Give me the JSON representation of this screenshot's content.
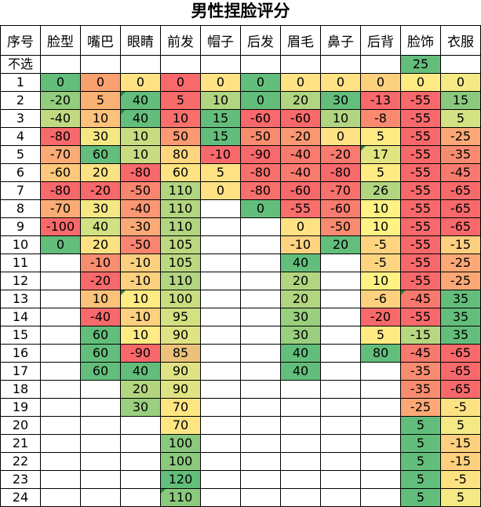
{
  "title": "男性捏脸评分",
  "headers": [
    "序号",
    "脸型",
    "嘴巴",
    "眼睛",
    "前发",
    "帽子",
    "后发",
    "眉毛",
    "鼻子",
    "后背",
    "脸饰",
    "衣服"
  ],
  "rows": [
    [
      "不选",
      "",
      "",
      "",
      "",
      "",
      "",
      "",
      "",
      "",
      "25",
      ""
    ],
    [
      "1",
      "0",
      "0",
      "0",
      "0",
      "0",
      "0",
      "0",
      "0",
      "0",
      "0",
      "0"
    ],
    [
      "2",
      "-20",
      "5",
      "40",
      "5",
      "10",
      "0",
      "20",
      "30",
      "-13",
      "-55",
      "15"
    ],
    [
      "3",
      "-40",
      "10",
      "40",
      "10",
      "15",
      "-60",
      "-60",
      "10",
      "-8",
      "-55",
      "5"
    ],
    [
      "4",
      "-80",
      "30",
      "10",
      "50",
      "15",
      "-50",
      "-20",
      "0",
      "5",
      "-55",
      "-25"
    ],
    [
      "5",
      "-70",
      "60",
      "10",
      "80",
      "-10",
      "-90",
      "-40",
      "-20",
      "17",
      "-55",
      "-35"
    ],
    [
      "6",
      "-60",
      "20",
      "-80",
      "60",
      "5",
      "-80",
      "-40",
      "-80",
      "5",
      "-55",
      "-45"
    ],
    [
      "7",
      "-80",
      "-20",
      "-50",
      "110",
      "0",
      "-80",
      "-60",
      "-70",
      "26",
      "-55",
      "-65"
    ],
    [
      "8",
      "-70",
      "30",
      "-40",
      "110",
      "",
      "0",
      "-55",
      "-60",
      "10",
      "-55",
      "-65"
    ],
    [
      "9",
      "-100",
      "40",
      "-30",
      "110",
      "",
      "",
      "0",
      "-50",
      "10",
      "-55",
      "-65"
    ],
    [
      "10",
      "0",
      "20",
      "-50",
      "105",
      "",
      "",
      "-10",
      "20",
      "-5",
      "-55",
      "-15"
    ],
    [
      "11",
      "",
      "-10",
      "-10",
      "105",
      "",
      "",
      "40",
      "",
      "-5",
      "-55",
      "-25"
    ],
    [
      "12",
      "",
      "-20",
      "-10",
      "110",
      "",
      "",
      "20",
      "",
      "10",
      "-55",
      "-25"
    ],
    [
      "13",
      "",
      "10",
      "10",
      "100",
      "",
      "",
      "20",
      "",
      "-6",
      "-45",
      "35"
    ],
    [
      "14",
      "",
      "-40",
      "-10",
      "95",
      "",
      "",
      "30",
      "",
      "-20",
      "-55",
      "35"
    ],
    [
      "15",
      "",
      "60",
      "10",
      "90",
      "",
      "",
      "30",
      "",
      "5",
      "-15",
      "35"
    ],
    [
      "16",
      "",
      "60",
      "-90",
      "85",
      "",
      "",
      "40",
      "",
      "80",
      "-45",
      "-65"
    ],
    [
      "17",
      "",
      "60",
      "40",
      "90",
      "",
      "",
      "40",
      "",
      "",
      "-35",
      "-65"
    ],
    [
      "18",
      "",
      "",
      "20",
      "90",
      "",
      "",
      "",
      "",
      "",
      "-35",
      "-65"
    ],
    [
      "19",
      "",
      "",
      "30",
      "70",
      "",
      "",
      "",
      "",
      "",
      "-25",
      "-5"
    ],
    [
      "20",
      "",
      "",
      "",
      "70",
      "",
      "",
      "",
      "",
      "",
      "5",
      "5"
    ],
    [
      "21",
      "",
      "",
      "",
      "100",
      "",
      "",
      "",
      "",
      "",
      "5",
      "-15"
    ],
    [
      "22",
      "",
      "",
      "",
      "100",
      "",
      "",
      "",
      "",
      "",
      "5",
      "-15"
    ],
    [
      "23",
      "",
      "",
      "",
      "120",
      "",
      "",
      "",
      "",
      "",
      "5",
      "-5"
    ],
    [
      "24",
      "",
      "",
      "",
      "110",
      "",
      "",
      "",
      "",
      "",
      "5",
      "5"
    ]
  ],
  "colors": {
    "cells": [
      [
        "",
        "",
        "",
        "",
        "",
        "",
        "",
        "",
        "",
        "",
        "#63be7b",
        ""
      ],
      [
        "",
        "#63be7b",
        "#f8a070",
        "#fee283",
        "#f8696b",
        "#fee283",
        "#63be7b",
        "#fee283",
        "#fee283",
        "#fdd07f",
        "#ffeb84",
        "#f4e984"
      ],
      [
        "",
        "#93cd7e",
        "#f9b274",
        "#63be7b",
        "#f86b6b",
        "#b1d580",
        "#63be7b",
        "#b1d580",
        "#63be7b",
        "#f8696b",
        "#f8696b",
        "#8bca7e"
      ],
      [
        "",
        "#c1da81",
        "#fcc27a",
        "#63be7b",
        "#f86f6c",
        "#63be7b",
        "#f8696b",
        "#f8696b",
        "#b1d580",
        "#f98a6f",
        "#f8696b",
        "#d3e383"
      ],
      [
        "",
        "#f8696b",
        "#f5e884",
        "#c9dc81",
        "#fb9974",
        "#63be7b",
        "#f88c6f",
        "#fa9873",
        "#fee283",
        "#ffeb84",
        "#f8696b",
        "#fba876"
      ],
      [
        "",
        "#fbac76",
        "#63be7b",
        "#c9dc81",
        "#ffd580",
        "#f8696b",
        "#f8696b",
        "#f97b6e",
        "#f97a6e",
        "#e2e482",
        "#f8696b",
        "#f98c70"
      ],
      [
        "",
        "#fec97c",
        "#fde283",
        "#f8696b",
        "#ffe383",
        "#fee283",
        "#f8706c",
        "#f97b6e",
        "#f8696b",
        "#ffeb84",
        "#f8696b",
        "#f8796d"
      ],
      [
        "",
        "#f8696b",
        "#f8696b",
        "#f98570",
        "#b1d580",
        "#fee283",
        "#f8706c",
        "#f8696b",
        "#f8716c",
        "#b2d580",
        "#f8696b",
        "#f8696b"
      ],
      [
        "",
        "#fbac76",
        "#f5e884",
        "#fb9774",
        "#b1d580",
        "",
        "#63be7b",
        "#f86f6c",
        "#f97d6e",
        "#fff183",
        "#f8696b",
        "#f8696b"
      ],
      [
        "",
        "#f8696b",
        "#d1e183",
        "#fba976",
        "#b1d580",
        "",
        "",
        "#fee283",
        "#f98b70",
        "#fff183",
        "#f8696b",
        "#f8696b"
      ],
      [
        "",
        "#63be7b",
        "#fde283",
        "#f98570",
        "#bcd881",
        "",
        "",
        "#fdd380",
        "#63be7b",
        "#fed480",
        "#f8696b",
        "#fdd07f"
      ],
      [
        "",
        "",
        "#f98d70",
        "#fbd07f",
        "#bcd881",
        "",
        "",
        "#63be7b",
        "",
        "#fed480",
        "#f8696b",
        "#fba876"
      ],
      [
        "",
        "",
        "#f8696b",
        "#fbd07f",
        "#b1d580",
        "",
        "",
        "#b1d580",
        "",
        "#fff183",
        "#f8696b",
        "#fba876"
      ],
      [
        "",
        "",
        "#fcc27a",
        "#ffeb84",
        "#c9dc81",
        "",
        "",
        "#b1d580",
        "",
        "#fdd07f",
        "#f8796d",
        "#63be7b"
      ],
      [
        "",
        "",
        "#f8696b",
        "#fbd07f",
        "#d4e182",
        "",
        "",
        "#99cf7e",
        "",
        "#f8696b",
        "#f8696b",
        "#63be7b"
      ],
      [
        "",
        "",
        "#63be7b",
        "#ffeb84",
        "#e0e383",
        "",
        "",
        "#99cf7e",
        "",
        "#ffeb84",
        "#b8d781",
        "#63be7b"
      ],
      [
        "",
        "",
        "#63be7b",
        "#f8696b",
        "#ecc27b",
        "",
        "",
        "#63be7b",
        "",
        "#63be7b",
        "#f8796d",
        "#f8696b"
      ],
      [
        "",
        "",
        "#63be7b",
        "#63be7b",
        "#e0e383",
        "",
        "",
        "#63be7b",
        "",
        "",
        "#f98c70",
        "#f8696b"
      ],
      [
        "",
        "",
        "",
        "#b4d580",
        "#e0e383",
        "",
        "",
        "",
        "",
        "",
        "#f98c70",
        "#f8696b"
      ],
      [
        "",
        "",
        "",
        "#99cf7e",
        "#ffe683",
        "",
        "",
        "",
        "",
        "",
        "#fba876",
        "#fde283"
      ],
      [
        "",
        "",
        "",
        "",
        "#ffe683",
        "",
        "",
        "",
        "",
        "",
        "#63be7b",
        "#f4e984"
      ],
      [
        "",
        "",
        "",
        "",
        "#8bca7e",
        "",
        "",
        "",
        "",
        "",
        "#63be7b",
        "#fdd07f"
      ],
      [
        "",
        "",
        "",
        "",
        "#8bca7e",
        "",
        "",
        "",
        "",
        "",
        "#63be7b",
        "#fdd07f"
      ],
      [
        "",
        "",
        "",
        "",
        "#63be7b",
        "",
        "",
        "",
        "",
        "",
        "#63be7b",
        "#fde283"
      ],
      [
        "",
        "",
        "",
        "",
        "#8bca7e",
        "",
        "",
        "",
        "",
        "",
        "#63be7b",
        "#f4e984"
      ]
    ]
  }
}
